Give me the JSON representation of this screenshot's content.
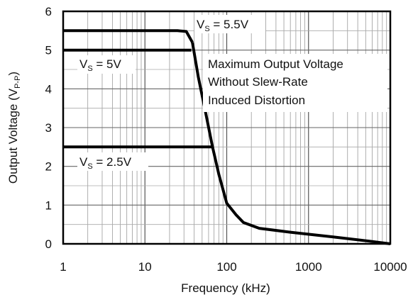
{
  "chart_data": {
    "type": "line",
    "title": "",
    "xlabel": "Frequency (kHz)",
    "ylabel": {
      "main": "Output Voltage (V",
      "sub": "P-P",
      "tail": ")"
    },
    "x_scale": "log",
    "xlim": [
      1,
      10000
    ],
    "ylim": [
      0,
      6
    ],
    "x_ticks": [
      "1",
      "10",
      "100",
      "1000",
      "10000"
    ],
    "y_ticks": [
      "0",
      "1",
      "2",
      "3",
      "4",
      "5",
      "6"
    ],
    "grid": true,
    "annotation_lines": [
      "Maximum Output Voltage",
      "Without Slew-Rate",
      "Induced Distortion"
    ],
    "series": [
      {
        "name": {
          "main": "V",
          "sub": "S",
          "tail": " = 5.5V"
        },
        "x": [
          1,
          10,
          25,
          32,
          38
        ],
        "y": [
          5.5,
          5.5,
          5.5,
          5.48,
          5.2
        ]
      },
      {
        "name": {
          "main": "V",
          "sub": "S",
          "tail": " = 5V"
        },
        "x": [
          1,
          10,
          33,
          37
        ],
        "y": [
          5.0,
          5.0,
          5.0,
          5.0
        ]
      },
      {
        "name": {
          "main": "V",
          "sub": "S",
          "tail": " = 2.5V"
        },
        "x": [
          1,
          10,
          60,
          67
        ],
        "y": [
          2.5,
          2.5,
          2.5,
          2.5
        ]
      },
      {
        "name": "",
        "x": [
          38,
          45,
          55,
          67,
          80,
          100,
          130,
          160,
          250,
          600,
          2000,
          6000,
          10000
        ],
        "y": [
          5.2,
          4.3,
          3.4,
          2.5,
          1.8,
          1.05,
          0.75,
          0.55,
          0.4,
          0.3,
          0.18,
          0.06,
          0.0
        ]
      }
    ]
  }
}
